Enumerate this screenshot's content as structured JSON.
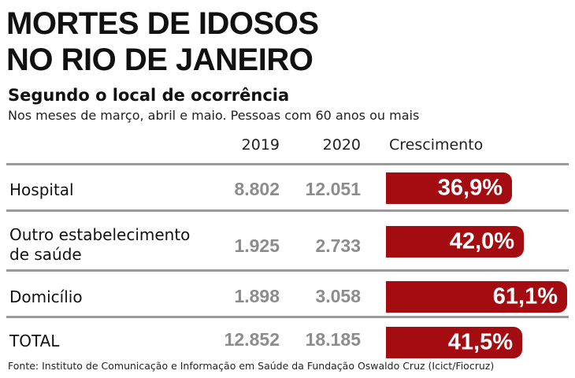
{
  "header": {
    "title_line1": "MORTES DE IDOSOS",
    "title_line2": "NO RIO DE JANEIRO",
    "subtitle": "Segundo o local de ocorrência",
    "note": "Nos meses de março, abril e maio. Pessoas com 60 anos ou mais"
  },
  "columns": {
    "year1": "2019",
    "year2": "2020",
    "growth": "Crescimento"
  },
  "rows": [
    {
      "label_line1": "Hospital",
      "label_line2": "",
      "v2019": "8.802",
      "v2020": "12.051",
      "growth": "36,9%"
    },
    {
      "label_line1": "Outro estabelecimento",
      "label_line2": "de saúde",
      "v2019": "1.925",
      "v2020": "2.733",
      "growth": "42,0%"
    },
    {
      "label_line1": "Domicílio",
      "label_line2": "",
      "v2019": "1.898",
      "v2020": "3.058",
      "growth": "61,1%"
    },
    {
      "label_line1": "TOTAL",
      "label_line2": "",
      "v2019": "12.852",
      "v2020": "18.185",
      "growth": "41,5%"
    }
  ],
  "source": "Fonte: Instituto de Comunicação e Informação em Saúde da Fundação Oswaldo Cruz (Icict/Fiocruz)",
  "colors": {
    "bar": "#a30d11",
    "numbers": "#8c8c8c",
    "rule": "#9a9a9a"
  },
  "chart_data": {
    "type": "bar",
    "orientation": "horizontal",
    "title": "MORTES DE IDOSOS NO RIO DE JANEIRO",
    "subtitle": "Segundo o local de ocorrência",
    "categories": [
      "Hospital",
      "Outro estabelecimento de saúde",
      "Domicílio",
      "TOTAL"
    ],
    "series": [
      {
        "name": "2019",
        "values": [
          8802,
          1925,
          1898,
          12852
        ]
      },
      {
        "name": "2020",
        "values": [
          12051,
          2733,
          3058,
          18185
        ]
      },
      {
        "name": "Crescimento",
        "values": [
          36.9,
          42.0,
          61.1,
          41.5
        ],
        "unit": "%"
      }
    ],
    "bar_series": "Crescimento",
    "xlim": [
      0,
      61.1
    ]
  }
}
